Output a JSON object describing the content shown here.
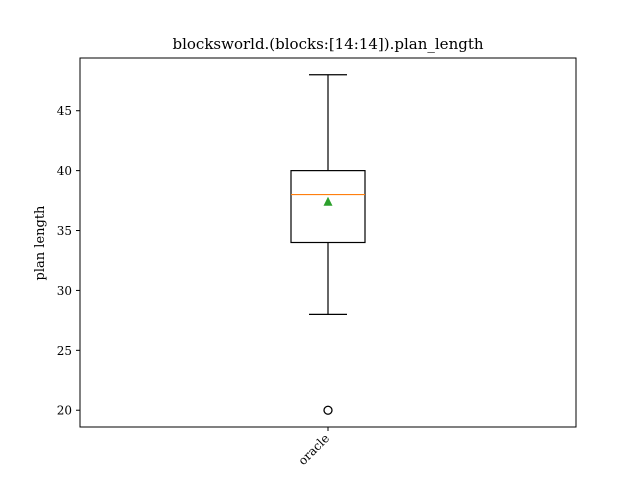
{
  "chart_data": {
    "type": "box",
    "title": "blocksworld.(blocks:[14:14]).plan_length",
    "xlabel": "",
    "ylabel": "plan length",
    "ylim": [
      18.6,
      49.4
    ],
    "yticks": [
      20,
      25,
      30,
      35,
      40,
      45
    ],
    "categories": [
      "oracle"
    ],
    "boxes": [
      {
        "name": "oracle",
        "whisker_low": 28,
        "q1": 34,
        "median": 38,
        "q3": 40,
        "whisker_high": 48,
        "mean": 37.4,
        "outliers": [
          20
        ]
      }
    ],
    "grid": false,
    "colors": {
      "box": "#000000",
      "median": "#ff7f0e",
      "mean": "#2ca02c",
      "outlier": "#000000"
    }
  }
}
